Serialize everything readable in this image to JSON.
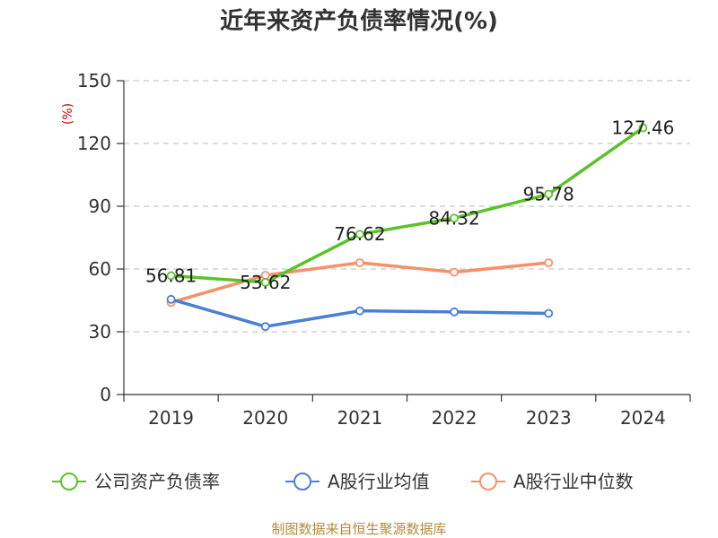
{
  "chart_data": {
    "type": "line",
    "title": "近年来资产负债率情况(%)",
    "ylabel": "(%)",
    "categories": [
      "2019",
      "2020",
      "2021",
      "2022",
      "2023",
      "2024"
    ],
    "ylim": [
      0,
      150
    ],
    "yticks": [
      0,
      30,
      60,
      90,
      120,
      150
    ],
    "grid": true,
    "legend_position": "bottom",
    "series": [
      {
        "name": "公司资产负债率",
        "color": "#5cc22a",
        "values": [
          56.81,
          53.62,
          76.62,
          84.32,
          95.78,
          127.46
        ],
        "labels": [
          "56.81",
          "53.62",
          "76.62",
          "84.32",
          "95.78",
          "127.46"
        ]
      },
      {
        "name": "A股行业均值",
        "color": "#4a7fd4",
        "values": [
          45.5,
          32.5,
          40.0,
          39.5,
          38.8,
          null
        ]
      },
      {
        "name": "A股行业中位数",
        "color": "#f4916a",
        "values": [
          44.0,
          57.0,
          63.0,
          58.5,
          63.0,
          null
        ]
      }
    ],
    "source": "制图数据来自恒生聚源数据库"
  }
}
